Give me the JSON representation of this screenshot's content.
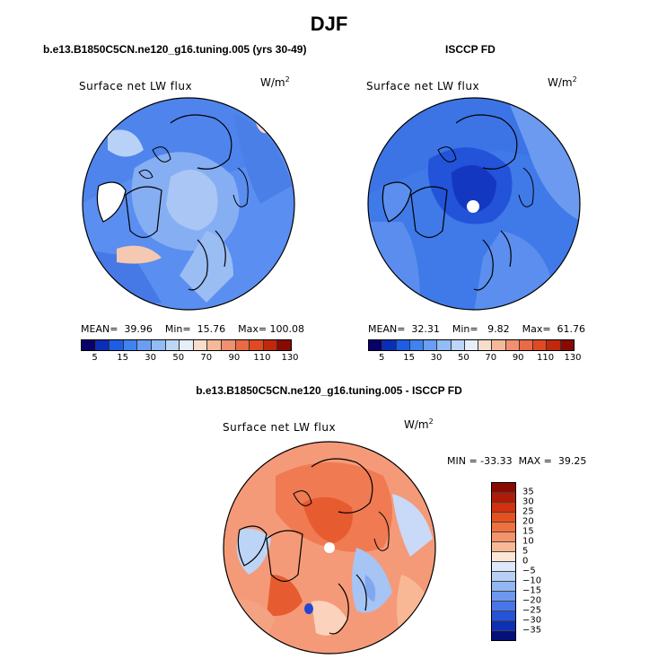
{
  "title": "DJF",
  "panels": [
    {
      "title": "b.e13.B1850C5CN.ne120_g16.tuning.005 (yrs 30-49)",
      "subtitle": "Surface net LW flux",
      "units_base": "W/m",
      "units_exp": "2",
      "stats": "MEAN=  39.96    Min=  15.76    Max= 100.08"
    },
    {
      "title": "ISCCP FD",
      "subtitle": "Surface net LW flux",
      "units_base": "W/m",
      "units_exp": "2",
      "stats": "MEAN=  32.31    Min=   9.82    Max=  61.76"
    },
    {
      "title": "b.e13.B1850C5CN.ne120_g16.tuning.005 - ISCCP FD",
      "subtitle": "Surface net LW flux",
      "units_base": "W/m",
      "units_exp": "2",
      "stats": "MIN = -33.33  MAX =  39.25"
    }
  ],
  "chart_data": [
    {
      "type": "heatmap",
      "title": "b.e13.B1850C5CN.ne120_g16.tuning.005 (yrs 30-49)",
      "subtitle": "Surface net LW flux",
      "units": "W/m^2",
      "projection": "north polar stereographic",
      "mean": 39.96,
      "min": 15.76,
      "max": 100.08,
      "colorbar": {
        "tick_labels": [
          "5",
          "15",
          "30",
          "50",
          "70",
          "90",
          "110",
          "130"
        ],
        "colors": [
          "#08006b",
          "#0a2eb8",
          "#1e5ee6",
          "#3f82f0",
          "#6a9ef2",
          "#92bcf5",
          "#bcd6f8",
          "#e6eefa",
          "#f8ddcc",
          "#f5b999",
          "#f09070",
          "#e96a45",
          "#e04a22",
          "#c2280c",
          "#8a0a02"
        ]
      }
    },
    {
      "type": "heatmap",
      "title": "ISCCP FD",
      "subtitle": "Surface net LW flux",
      "units": "W/m^2",
      "projection": "north polar stereographic",
      "mean": 32.31,
      "min": 9.82,
      "max": 61.76,
      "colorbar": {
        "tick_labels": [
          "5",
          "15",
          "30",
          "50",
          "70",
          "90",
          "110",
          "130"
        ],
        "colors": [
          "#08006b",
          "#0a2eb8",
          "#1e5ee6",
          "#3f82f0",
          "#6a9ef2",
          "#92bcf5",
          "#bcd6f8",
          "#e6eefa",
          "#f8ddcc",
          "#f5b999",
          "#f09070",
          "#e96a45",
          "#e04a22",
          "#c2280c",
          "#8a0a02"
        ]
      }
    },
    {
      "type": "heatmap",
      "title": "b.e13.B1850C5CN.ne120_g16.tuning.005 - ISCCP FD",
      "subtitle": "Surface net LW flux",
      "units": "W/m^2",
      "projection": "north polar stereographic",
      "min": -33.33,
      "max": 39.25,
      "colorbar": {
        "orientation": "vertical",
        "tick_labels": [
          "35",
          "30",
          "25",
          "20",
          "15",
          "10",
          "5",
          "0",
          "−5",
          "−10",
          "−15",
          "−20",
          "−25",
          "−30",
          "−35"
        ],
        "colors": [
          "#8a0a02",
          "#b01a06",
          "#d2300e",
          "#e6501e",
          "#f07040",
          "#f59368",
          "#f8b896",
          "#fde6d6",
          "#dde8f8",
          "#b8d0f5",
          "#92b6f2",
          "#6c98ee",
          "#4677e8",
          "#2553d8",
          "#0e30b4",
          "#06107a"
        ]
      }
    }
  ]
}
